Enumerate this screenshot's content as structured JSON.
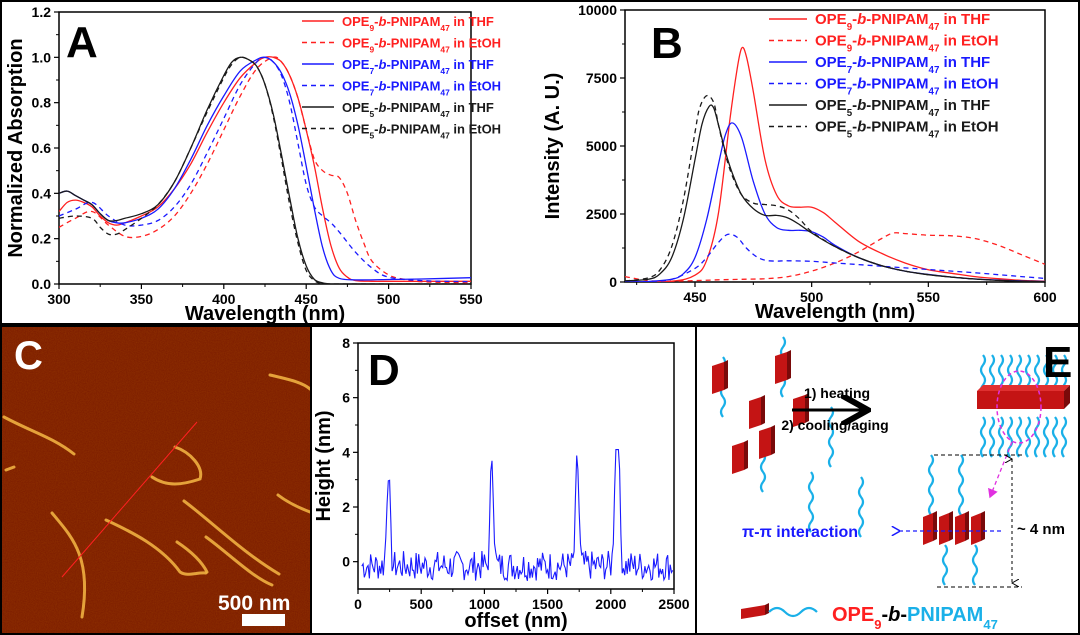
{
  "figure": {
    "panels": [
      "A",
      "B",
      "C",
      "D",
      "E"
    ]
  },
  "colors": {
    "red": "#ff2020",
    "blue": "#1a1aff",
    "black": "#1a1a1a",
    "afm_bg": "#7a1a00",
    "fiber": "#f0b040",
    "cyan": "#1ab0e8",
    "block": "#b01010",
    "magenta": "#e030e0"
  },
  "chart_data": [
    {
      "panel": "A",
      "type": "line",
      "title": "",
      "xlabel": "Wavelength (nm)",
      "ylabel": "Normalized Absorption",
      "xlim": [
        300,
        550
      ],
      "ylim": [
        0.0,
        1.2
      ],
      "xticks": [
        "300",
        "350",
        "400",
        "450",
        "500",
        "550"
      ],
      "yticks": [
        "0.0",
        "0.2",
        "0.4",
        "0.6",
        "0.8",
        "1.0",
        "1.2"
      ],
      "legend_position": "top-right",
      "series": [
        {
          "name": "OPE9-b-PNIPAM47 in THF",
          "sub1": "9",
          "sub2": "47",
          "solvent": "THF",
          "color": "red",
          "dash": false,
          "x": [
            300,
            305,
            310,
            315,
            320,
            325,
            330,
            335,
            340,
            350,
            360,
            370,
            380,
            390,
            400,
            410,
            420,
            425,
            430,
            435,
            440,
            445,
            450,
            455,
            460,
            465,
            470,
            475,
            480,
            490,
            500,
            520,
            550
          ],
          "y": [
            0.32,
            0.36,
            0.37,
            0.36,
            0.34,
            0.3,
            0.27,
            0.26,
            0.27,
            0.3,
            0.34,
            0.42,
            0.53,
            0.67,
            0.8,
            0.91,
            0.98,
            1.0,
            1.0,
            0.98,
            0.92,
            0.82,
            0.68,
            0.52,
            0.33,
            0.17,
            0.07,
            0.03,
            0.015,
            0.012,
            0.012,
            0.012,
            0.012
          ]
        },
        {
          "name": "OPE9-b-PNIPAM47 in EtOH",
          "sub1": "9",
          "sub2": "47",
          "solvent": "EtOH",
          "color": "red",
          "dash": true,
          "x": [
            300,
            310,
            320,
            330,
            340,
            350,
            360,
            370,
            380,
            390,
            400,
            410,
            420,
            430,
            435,
            440,
            445,
            450,
            455,
            460,
            465,
            470,
            475,
            480,
            485,
            490,
            500,
            510,
            520,
            550
          ],
          "y": [
            0.25,
            0.29,
            0.32,
            0.26,
            0.21,
            0.21,
            0.24,
            0.3,
            0.4,
            0.53,
            0.68,
            0.83,
            0.95,
            1.0,
            0.98,
            0.92,
            0.82,
            0.68,
            0.55,
            0.5,
            0.48,
            0.47,
            0.4,
            0.28,
            0.18,
            0.1,
            0.04,
            0.02,
            0.01,
            0.005
          ]
        },
        {
          "name": "OPE7-b-PNIPAM47 in THF",
          "sub1": "7",
          "sub2": "47",
          "solvent": "THF",
          "color": "blue",
          "dash": false,
          "x": [
            300,
            305,
            310,
            315,
            320,
            325,
            330,
            335,
            340,
            350,
            360,
            370,
            380,
            390,
            400,
            410,
            420,
            425,
            430,
            435,
            440,
            445,
            450,
            455,
            460,
            465,
            470,
            480,
            500,
            520,
            550
          ],
          "y": [
            0.4,
            0.41,
            0.39,
            0.37,
            0.35,
            0.31,
            0.28,
            0.27,
            0.27,
            0.29,
            0.33,
            0.42,
            0.55,
            0.7,
            0.83,
            0.94,
            0.99,
            1.0,
            0.98,
            0.93,
            0.84,
            0.7,
            0.52,
            0.33,
            0.16,
            0.06,
            0.025,
            0.018,
            0.02,
            0.022,
            0.028
          ]
        },
        {
          "name": "OPE7-b-PNIPAM47 in EtOH",
          "sub1": "7",
          "sub2": "47",
          "solvent": "EtOH",
          "color": "blue",
          "dash": true,
          "x": [
            300,
            310,
            320,
            330,
            340,
            350,
            360,
            370,
            380,
            390,
            400,
            410,
            420,
            425,
            430,
            435,
            440,
            445,
            450,
            455,
            460,
            465,
            470,
            480,
            490,
            500,
            520,
            550
          ],
          "y": [
            0.3,
            0.33,
            0.36,
            0.3,
            0.26,
            0.26,
            0.28,
            0.34,
            0.44,
            0.58,
            0.73,
            0.88,
            0.98,
            1.0,
            0.98,
            0.92,
            0.8,
            0.62,
            0.44,
            0.34,
            0.3,
            0.27,
            0.23,
            0.14,
            0.07,
            0.03,
            0.015,
            0.01
          ]
        },
        {
          "name": "OPE5-b-PNIPAM47 in THF",
          "sub1": "5",
          "sub2": "47",
          "solvent": "THF",
          "color": "black",
          "dash": false,
          "x": [
            300,
            305,
            310,
            315,
            320,
            325,
            330,
            335,
            340,
            350,
            360,
            370,
            380,
            390,
            400,
            405,
            410,
            415,
            420,
            425,
            430,
            435,
            440,
            445,
            450,
            455,
            460,
            465,
            470,
            550
          ],
          "y": [
            0.4,
            0.41,
            0.39,
            0.37,
            0.35,
            0.31,
            0.28,
            0.28,
            0.29,
            0.31,
            0.35,
            0.45,
            0.6,
            0.77,
            0.92,
            0.98,
            1.0,
            0.99,
            0.96,
            0.88,
            0.75,
            0.57,
            0.38,
            0.2,
            0.08,
            0.02,
            0.005,
            0.0,
            0.0,
            0.0
          ]
        },
        {
          "name": "OPE5-b-PNIPAM47 in EtOH",
          "sub1": "5",
          "sub2": "47",
          "solvent": "EtOH",
          "color": "black",
          "dash": true,
          "x": [
            300,
            310,
            320,
            325,
            330,
            335,
            340,
            350,
            360,
            370,
            380,
            390,
            400,
            405,
            410,
            415,
            420,
            425,
            430,
            435,
            440,
            445,
            450,
            455,
            460,
            465,
            470,
            550
          ],
          "y": [
            0.29,
            0.3,
            0.29,
            0.25,
            0.22,
            0.22,
            0.24,
            0.29,
            0.35,
            0.45,
            0.6,
            0.76,
            0.91,
            0.97,
            1.0,
            0.99,
            0.96,
            0.88,
            0.74,
            0.55,
            0.35,
            0.18,
            0.06,
            0.015,
            0.0,
            0.0,
            0.0,
            0.0
          ]
        }
      ]
    },
    {
      "panel": "B",
      "type": "line",
      "title": "",
      "xlabel": "Wavelength (nm)",
      "ylabel": "Intensity (A. U.)",
      "xlim": [
        420,
        600
      ],
      "ylim": [
        0,
        10000
      ],
      "xticks": [
        "450",
        "500",
        "550",
        "600"
      ],
      "yticks": [
        "0",
        "2500",
        "5000",
        "7500",
        "10000"
      ],
      "legend_position": "top-right",
      "series": [
        {
          "name": "OPE9-b-PNIPAM47 in THF",
          "sub1": "9",
          "sub2": "47",
          "solvent": "THF",
          "color": "red",
          "dash": false,
          "x": [
            420,
            440,
            450,
            455,
            460,
            465,
            468,
            470,
            472,
            475,
            480,
            485,
            490,
            495,
            500,
            505,
            510,
            520,
            530,
            540,
            550,
            560,
            570,
            580,
            590,
            600
          ],
          "y": [
            0,
            30,
            250,
            800,
            2500,
            6000,
            7800,
            8600,
            8300,
            7000,
            4500,
            3200,
            2800,
            2750,
            2750,
            2550,
            2200,
            1500,
            1050,
            700,
            450,
            320,
            200,
            120,
            60,
            30
          ]
        },
        {
          "name": "OPE9-b-PNIPAM47 in EtOH",
          "sub1": "9",
          "sub2": "47",
          "solvent": "EtOH",
          "color": "red",
          "dash": true,
          "x": [
            420,
            430,
            440,
            450,
            460,
            470,
            480,
            490,
            500,
            510,
            520,
            530,
            535,
            540,
            550,
            560,
            570,
            580,
            590,
            600
          ],
          "y": [
            200,
            50,
            30,
            50,
            80,
            100,
            120,
            200,
            400,
            700,
            1100,
            1600,
            1800,
            1780,
            1720,
            1700,
            1600,
            1350,
            1000,
            650
          ]
        },
        {
          "name": "OPE7-b-PNIPAM47 in THF",
          "sub1": "7",
          "sub2": "47",
          "solvent": "THF",
          "color": "blue",
          "dash": false,
          "x": [
            420,
            430,
            440,
            445,
            450,
            455,
            460,
            463,
            466,
            470,
            475,
            480,
            485,
            490,
            495,
            500,
            505,
            510,
            520,
            530,
            540,
            550,
            560,
            570,
            580,
            590,
            600
          ],
          "y": [
            0,
            20,
            100,
            300,
            900,
            2300,
            4300,
            5400,
            5850,
            5300,
            3700,
            2500,
            2000,
            1900,
            1900,
            1850,
            1650,
            1350,
            900,
            600,
            400,
            280,
            180,
            110,
            70,
            40,
            20
          ]
        },
        {
          "name": "OPE7-b-PNIPAM47 in EtOH",
          "sub1": "7",
          "sub2": "47",
          "solvent": "EtOH",
          "color": "blue",
          "dash": true,
          "x": [
            420,
            430,
            440,
            450,
            455,
            460,
            464,
            468,
            472,
            476,
            480,
            485,
            490,
            500,
            510,
            520,
            530,
            540,
            550,
            560,
            570,
            580,
            590,
            600
          ],
          "y": [
            0,
            20,
            100,
            500,
            900,
            1450,
            1750,
            1650,
            1250,
            950,
            800,
            770,
            780,
            760,
            700,
            640,
            580,
            520,
            460,
            400,
            340,
            270,
            200,
            130
          ]
        },
        {
          "name": "OPE5-b-PNIPAM47 in THF",
          "sub1": "5",
          "sub2": "47",
          "solvent": "THF",
          "color": "black",
          "dash": false,
          "x": [
            420,
            430,
            435,
            440,
            445,
            450,
            453,
            456,
            458,
            460,
            463,
            466,
            470,
            475,
            480,
            485,
            490,
            495,
            500,
            510,
            520,
            530,
            540,
            550,
            560,
            570,
            580,
            590,
            600
          ],
          "y": [
            40,
            100,
            300,
            900,
            2300,
            4500,
            5800,
            6450,
            6400,
            5800,
            4800,
            4000,
            3200,
            2700,
            2450,
            2450,
            2350,
            2100,
            1800,
            1300,
            900,
            600,
            400,
            270,
            180,
            110,
            60,
            30,
            10
          ]
        },
        {
          "name": "OPE5-b-PNIPAM47 in EtOH",
          "sub1": "5",
          "sub2": "47",
          "solvent": "EtOH",
          "color": "black",
          "dash": true,
          "x": [
            420,
            430,
            435,
            440,
            445,
            450,
            452,
            455,
            458,
            460,
            463,
            466,
            470,
            475,
            480,
            485,
            490,
            495,
            500,
            510,
            520,
            530,
            540,
            550,
            560,
            570,
            580,
            590,
            600
          ],
          "y": [
            40,
            150,
            450,
            1300,
            3000,
            5500,
            6400,
            6850,
            6600,
            5800,
            4700,
            3900,
            3200,
            2900,
            2850,
            2800,
            2650,
            2300,
            1850,
            1300,
            900,
            600,
            400,
            270,
            180,
            110,
            60,
            30,
            10
          ]
        }
      ]
    },
    {
      "panel": "D",
      "type": "line",
      "title": "",
      "xlabel": "offset (nm)",
      "ylabel": "Height (nm)",
      "xlim": [
        0,
        2500
      ],
      "ylim": [
        -1,
        8
      ],
      "xticks": [
        "0",
        "500",
        "1000",
        "1500",
        "2000",
        "2500"
      ],
      "yticks": [
        "0",
        "2",
        "4",
        "6",
        "8"
      ],
      "series": [
        {
          "name": "height profile",
          "color": "blue",
          "dash": false,
          "peaks": [
            {
              "x": 240,
              "height": 3.5
            },
            {
              "x": 1060,
              "height": 4.0
            },
            {
              "x": 1735,
              "height": 3.8
            },
            {
              "x": 2040,
              "height": 3.8
            },
            {
              "x": 2060,
              "height": 3.7
            }
          ],
          "x_range": [
            30,
            2490
          ],
          "baseline_noise": [
            -0.9,
            0.8
          ]
        }
      ]
    }
  ],
  "panelA": {
    "letter": "A",
    "legend": [
      {
        "pre": "OPE",
        "sub1": "9",
        "mid": "-",
        "ital": "b",
        "mid2": "-PNIPAM",
        "sub2": "47",
        "post": " in THF",
        "color": "red",
        "dash": false
      },
      {
        "pre": "OPE",
        "sub1": "9",
        "mid": "-",
        "ital": "b",
        "mid2": "-PNIPAM",
        "sub2": "47",
        "post": " in EtOH",
        "color": "red",
        "dash": true
      },
      {
        "pre": "OPE",
        "sub1": "7",
        "mid": "-",
        "ital": "b",
        "mid2": "-PNIPAM",
        "sub2": "47",
        "post": " in THF",
        "color": "blue",
        "dash": false
      },
      {
        "pre": "OPE",
        "sub1": "7",
        "mid": "-",
        "ital": "b",
        "mid2": "-PNIPAM",
        "sub2": "47",
        "post": " in EtOH",
        "color": "blue",
        "dash": true
      },
      {
        "pre": "OPE",
        "sub1": "5",
        "mid": "-",
        "ital": "b",
        "mid2": "-PNIPAM",
        "sub2": "47",
        "post": " in THF",
        "color": "black",
        "dash": false
      },
      {
        "pre": "OPE",
        "sub1": "5",
        "mid": "-",
        "ital": "b",
        "mid2": "-PNIPAM",
        "sub2": "47",
        "post": " in EtOH",
        "color": "black",
        "dash": true
      }
    ]
  },
  "panelB": {
    "letter": "B"
  },
  "panelC": {
    "letter": "C",
    "scale_bar_label": "500 nm"
  },
  "panelD": {
    "letter": "D"
  },
  "panelE": {
    "letter": "E",
    "step1": "1) heating",
    "step2": "2) cooling/aging",
    "pi_label": "π-π interaction",
    "dim_label": "~ 4 nm",
    "legend_ope": "OPE",
    "legend_sub9": "9",
    "legend_b": "b",
    "legend_dash1": "-",
    "legend_dash2": "-",
    "legend_pnipam": "PNIPAM",
    "legend_sub47": "47"
  }
}
